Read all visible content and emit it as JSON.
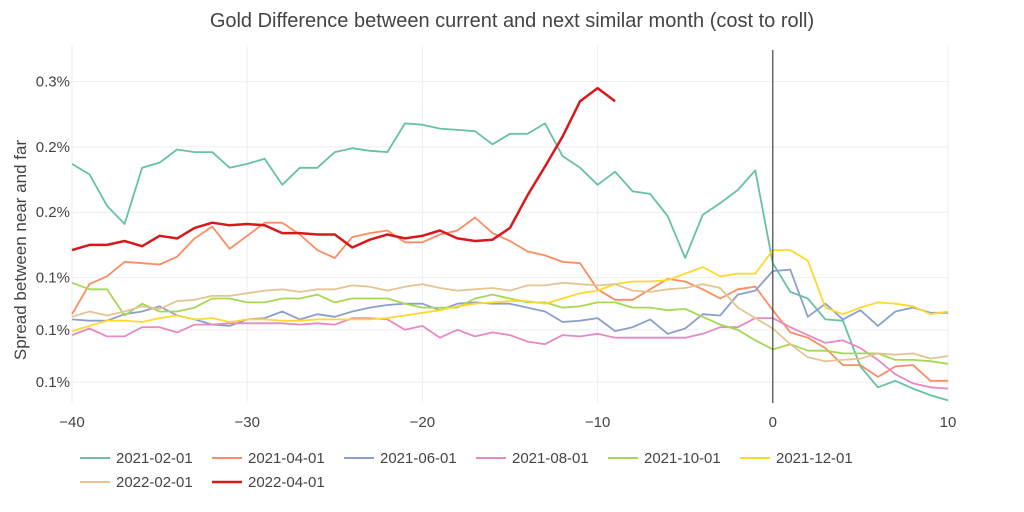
{
  "chart_data": {
    "type": "line",
    "title": "Gold Difference between current and next similar month (cost to roll)",
    "xlabel": "",
    "ylabel": "Spread between near and far",
    "xlim": [
      -40,
      10
    ],
    "ylim": [
      0.054,
      0.328
    ],
    "x_ticks": [
      -40,
      -30,
      -20,
      -10,
      0,
      10
    ],
    "x_tick_labels": [
      "−40",
      "−30",
      "−20",
      "−10",
      "0",
      "10"
    ],
    "y_ticks": [
      0.1,
      0.2,
      0.3
    ],
    "y_tick_labels": [
      "0.1%",
      "0.1%",
      "0.1%",
      "0.2%",
      "0.2%",
      "0.3%"
    ],
    "y_tick_values": [
      0.07,
      0.11,
      0.15,
      0.2,
      0.25,
      0.3
    ],
    "grid": true,
    "vertical_line_x": 0,
    "legend_position": "bottom",
    "series": [
      {
        "name": "2021-02-01",
        "color": "#66c2a5",
        "x": [
          -40,
          -39,
          -38,
          -37,
          -36,
          -35,
          -34,
          -33,
          -32,
          -31,
          -30,
          -29,
          -28,
          -27,
          -26,
          -25,
          -24,
          -23,
          -22,
          -21,
          -20,
          -19,
          -18,
          -17,
          -16,
          -15,
          -14,
          -13,
          -12,
          -11,
          -10,
          -9,
          -8,
          -7,
          -6,
          -5,
          -4,
          -3,
          -2,
          -1,
          0,
          1,
          2,
          3,
          4,
          5,
          6,
          7,
          8,
          9,
          10
        ],
        "values": [
          0.237,
          0.229,
          0.205,
          0.191,
          0.234,
          0.238,
          0.248,
          0.246,
          0.246,
          0.234,
          0.237,
          0.241,
          0.221,
          0.234,
          0.234,
          0.246,
          0.249,
          0.247,
          0.246,
          0.268,
          0.267,
          0.264,
          0.263,
          0.262,
          0.252,
          0.26,
          0.26,
          0.268,
          0.243,
          0.234,
          0.221,
          0.231,
          0.216,
          0.214,
          0.197,
          0.165,
          0.198,
          0.207,
          0.217,
          0.232,
          0.161,
          0.139,
          0.134,
          0.118,
          0.117,
          0.082,
          0.066,
          0.071,
          0.065,
          0.06,
          0.056
        ]
      },
      {
        "name": "2021-04-01",
        "color": "#fc8d62",
        "x": [
          -40,
          -39,
          -38,
          -37,
          -36,
          -35,
          -34,
          -33,
          -32,
          -31,
          -30,
          -29,
          -28,
          -27,
          -26,
          -25,
          -24,
          -23,
          -22,
          -21,
          -20,
          -19,
          -18,
          -17,
          -16,
          -15,
          -14,
          -13,
          -12,
          -11,
          -10,
          -9,
          -8,
          -7,
          -6,
          -5,
          -4,
          -3,
          -2,
          -1,
          0,
          1,
          2,
          3,
          4,
          5,
          6,
          7,
          8,
          9,
          10
        ],
        "values": [
          0.122,
          0.145,
          0.151,
          0.162,
          0.161,
          0.16,
          0.166,
          0.18,
          0.189,
          0.172,
          0.182,
          0.192,
          0.192,
          0.183,
          0.171,
          0.165,
          0.181,
          0.184,
          0.186,
          0.177,
          0.177,
          0.183,
          0.186,
          0.196,
          0.184,
          0.178,
          0.17,
          0.167,
          0.162,
          0.161,
          0.141,
          0.133,
          0.133,
          0.141,
          0.149,
          0.147,
          0.141,
          0.134,
          0.141,
          0.143,
          0.125,
          0.108,
          0.104,
          0.096,
          0.083,
          0.083,
          0.074,
          0.082,
          0.083,
          0.071,
          0.071
        ]
      },
      {
        "name": "2021-06-01",
        "color": "#8da0cb",
        "x": [
          -40,
          -39,
          -38,
          -37,
          -36,
          -35,
          -34,
          -33,
          -32,
          -31,
          -30,
          -29,
          -28,
          -27,
          -26,
          -25,
          -24,
          -23,
          -22,
          -21,
          -20,
          -19,
          -18,
          -17,
          -16,
          -15,
          -14,
          -13,
          -12,
          -11,
          -10,
          -9,
          -8,
          -7,
          -6,
          -5,
          -4,
          -3,
          -2,
          -1,
          0,
          1,
          2,
          3,
          4,
          5,
          6,
          7,
          8,
          9,
          10
        ],
        "values": [
          0.118,
          0.117,
          0.117,
          0.122,
          0.124,
          0.128,
          0.121,
          0.118,
          0.114,
          0.113,
          0.118,
          0.119,
          0.124,
          0.118,
          0.122,
          0.12,
          0.124,
          0.127,
          0.129,
          0.13,
          0.13,
          0.125,
          0.13,
          0.131,
          0.13,
          0.13,
          0.127,
          0.124,
          0.116,
          0.117,
          0.119,
          0.109,
          0.112,
          0.118,
          0.107,
          0.111,
          0.122,
          0.121,
          0.137,
          0.14,
          0.155,
          0.156,
          0.12,
          0.13,
          0.118,
          0.125,
          0.113,
          0.124,
          0.127,
          0.123,
          0.123
        ]
      },
      {
        "name": "2021-08-01",
        "color": "#e78ac3",
        "x": [
          -40,
          -39,
          -38,
          -37,
          -36,
          -35,
          -34,
          -33,
          -32,
          -31,
          -30,
          -29,
          -28,
          -27,
          -26,
          -25,
          -24,
          -23,
          -22,
          -21,
          -20,
          -19,
          -18,
          -17,
          -16,
          -15,
          -14,
          -13,
          -12,
          -11,
          -10,
          -9,
          -8,
          -7,
          -6,
          -5,
          -4,
          -3,
          -2,
          -1,
          0,
          1,
          2,
          3,
          4,
          5,
          6,
          7,
          8,
          9,
          10
        ],
        "values": [
          0.106,
          0.111,
          0.105,
          0.105,
          0.112,
          0.112,
          0.108,
          0.114,
          0.114,
          0.115,
          0.115,
          0.115,
          0.115,
          0.114,
          0.115,
          0.114,
          0.119,
          0.119,
          0.118,
          0.11,
          0.113,
          0.104,
          0.11,
          0.105,
          0.108,
          0.106,
          0.101,
          0.099,
          0.106,
          0.105,
          0.107,
          0.104,
          0.104,
          0.104,
          0.104,
          0.104,
          0.107,
          0.112,
          0.112,
          0.119,
          0.119,
          0.112,
          0.106,
          0.1,
          0.102,
          0.096,
          0.087,
          0.076,
          0.069,
          0.066,
          0.065
        ]
      },
      {
        "name": "2021-10-01",
        "color": "#a6d854",
        "x": [
          -40,
          -39,
          -38,
          -37,
          -36,
          -35,
          -34,
          -33,
          -32,
          -31,
          -30,
          -29,
          -28,
          -27,
          -26,
          -25,
          -24,
          -23,
          -22,
          -21,
          -20,
          -19,
          -18,
          -17,
          -16,
          -15,
          -14,
          -13,
          -12,
          -11,
          -10,
          -9,
          -8,
          -7,
          -6,
          -5,
          -4,
          -3,
          -2,
          -1,
          0,
          1,
          2,
          3,
          4,
          5,
          6,
          7,
          8,
          9,
          10
        ],
        "values": [
          0.146,
          0.141,
          0.141,
          0.121,
          0.13,
          0.124,
          0.124,
          0.127,
          0.134,
          0.134,
          0.131,
          0.131,
          0.134,
          0.134,
          0.137,
          0.131,
          0.134,
          0.134,
          0.134,
          0.13,
          0.127,
          0.127,
          0.127,
          0.134,
          0.137,
          0.134,
          0.131,
          0.131,
          0.127,
          0.128,
          0.131,
          0.131,
          0.127,
          0.127,
          0.125,
          0.126,
          0.12,
          0.114,
          0.11,
          0.102,
          0.095,
          0.099,
          0.094,
          0.094,
          0.092,
          0.092,
          0.092,
          0.087,
          0.087,
          0.086,
          0.084
        ]
      },
      {
        "name": "2021-12-01",
        "color": "#ffd92f",
        "x": [
          -40,
          -39,
          -38,
          -37,
          -36,
          -35,
          -34,
          -33,
          -32,
          -31,
          -30,
          -29,
          -28,
          -27,
          -26,
          -25,
          -24,
          -23,
          -22,
          -21,
          -20,
          -19,
          -18,
          -17,
          -16,
          -15,
          -14,
          -13,
          -12,
          -11,
          -10,
          -9,
          -8,
          -7,
          -6,
          -5,
          -4,
          -3,
          -2,
          -1,
          0,
          1,
          2,
          3,
          4,
          5,
          6,
          7,
          8,
          9,
          10
        ],
        "values": [
          0.109,
          0.113,
          0.117,
          0.117,
          0.116,
          0.119,
          0.121,
          0.118,
          0.119,
          0.116,
          0.118,
          0.118,
          0.117,
          0.117,
          0.118,
          0.118,
          0.118,
          0.118,
          0.119,
          0.121,
          0.123,
          0.125,
          0.128,
          0.13,
          0.131,
          0.132,
          0.132,
          0.13,
          0.134,
          0.138,
          0.14,
          0.145,
          0.147,
          0.147,
          0.148,
          0.153,
          0.158,
          0.151,
          0.153,
          0.153,
          0.171,
          0.171,
          0.163,
          0.127,
          0.122,
          0.127,
          0.131,
          0.13,
          0.128,
          0.122,
          0.124
        ]
      },
      {
        "name": "2022-02-01",
        "color": "#e5c494",
        "x": [
          -40,
          -39,
          -38,
          -37,
          -36,
          -35,
          -34,
          -33,
          -32,
          -31,
          -30,
          -29,
          -28,
          -27,
          -26,
          -25,
          -24,
          -23,
          -22,
          -21,
          -20,
          -19,
          -18,
          -17,
          -16,
          -15,
          -14,
          -13,
          -12,
          -11,
          -10,
          -9,
          -8,
          -7,
          -6,
          -5,
          -4,
          -3,
          -2,
          -1,
          0,
          1,
          2,
          3,
          4,
          5,
          6,
          7,
          8,
          9,
          10
        ],
        "values": [
          0.12,
          0.124,
          0.121,
          0.124,
          0.128,
          0.126,
          0.132,
          0.133,
          0.136,
          0.136,
          0.138,
          0.14,
          0.141,
          0.139,
          0.141,
          0.141,
          0.144,
          0.143,
          0.14,
          0.143,
          0.145,
          0.142,
          0.14,
          0.141,
          0.142,
          0.14,
          0.144,
          0.144,
          0.146,
          0.145,
          0.144,
          0.145,
          0.14,
          0.139,
          0.141,
          0.142,
          0.145,
          0.142,
          0.127,
          0.119,
          0.111,
          0.099,
          0.089,
          0.086,
          0.087,
          0.088,
          0.092,
          0.091,
          0.092,
          0.088,
          0.09
        ]
      },
      {
        "name": "2022-04-01",
        "color": "#d7191c",
        "x": [
          -40,
          -39,
          -38,
          -37,
          -36,
          -35,
          -34,
          -33,
          -32,
          -31,
          -30,
          -29,
          -28,
          -27,
          -26,
          -25,
          -24,
          -23,
          -22,
          -21,
          -20,
          -19,
          -18,
          -17,
          -16,
          -15,
          -14,
          -13,
          -12,
          -11,
          -10,
          -9
        ],
        "values": [
          0.171,
          0.175,
          0.175,
          0.178,
          0.174,
          0.182,
          0.18,
          0.188,
          0.192,
          0.19,
          0.191,
          0.19,
          0.184,
          0.184,
          0.183,
          0.183,
          0.173,
          0.179,
          0.183,
          0.18,
          0.182,
          0.186,
          0.18,
          0.178,
          0.179,
          0.188,
          0.213,
          0.235,
          0.258,
          0.285,
          0.295,
          0.285
        ]
      }
    ]
  }
}
